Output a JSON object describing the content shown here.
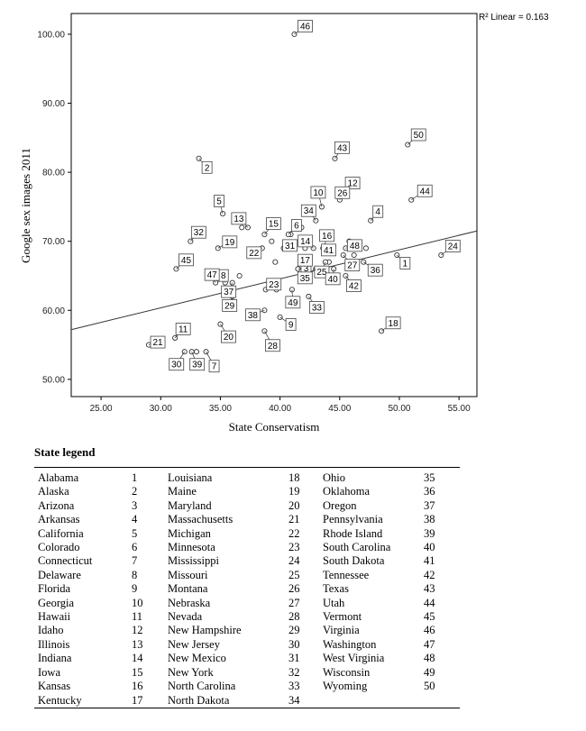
{
  "chart_data": {
    "type": "scatter",
    "xlabel": "State Conservatism",
    "ylabel": "Google sex images 2011",
    "xlim": [
      22.5,
      56.5
    ],
    "ylim": [
      47.5,
      103.0
    ],
    "x_ticks": [
      "25.00",
      "30.00",
      "35.00",
      "40.00",
      "45.00",
      "50.00",
      "55.00"
    ],
    "x_tick_values": [
      25,
      30,
      35,
      40,
      45,
      50,
      55
    ],
    "y_ticks": [
      "50.00",
      "60.00",
      "70.00",
      "80.00",
      "90.00",
      "100.00"
    ],
    "y_tick_values": [
      50,
      60,
      70,
      80,
      90,
      100
    ],
    "fit_line": {
      "label": "R² Linear = 0.163",
      "x": [
        22.5,
        56.5
      ],
      "y": [
        57.2,
        71.5
      ]
    },
    "points": [
      {
        "id": "1",
        "x": 49.8,
        "y": 68
      },
      {
        "id": "2",
        "x": 33.2,
        "y": 82
      },
      {
        "id": "3",
        "x": 41.5,
        "y": 66
      },
      {
        "id": "4",
        "x": 47.6,
        "y": 73
      },
      {
        "id": "5",
        "x": 35.2,
        "y": 74
      },
      {
        "id": "6",
        "x": 40.7,
        "y": 71
      },
      {
        "id": "7",
        "x": 33.8,
        "y": 54
      },
      {
        "id": "8",
        "x": 35.4,
        "y": 64
      },
      {
        "id": "9",
        "x": 40.0,
        "y": 59
      },
      {
        "id": "10",
        "x": 43.5,
        "y": 75
      },
      {
        "id": "11",
        "x": 31.2,
        "y": 56
      },
      {
        "id": "12",
        "x": 45.4,
        "y": 77
      },
      {
        "id": "13",
        "x": 37.3,
        "y": 72
      },
      {
        "id": "14",
        "x": 42.8,
        "y": 69
      },
      {
        "id": "15",
        "x": 38.7,
        "y": 71
      },
      {
        "id": "16",
        "x": 43.7,
        "y": 69
      },
      {
        "id": "17",
        "x": 42.4,
        "y": 67
      },
      {
        "id": "18",
        "x": 48.5,
        "y": 57
      },
      {
        "id": "19",
        "x": 34.8,
        "y": 69
      },
      {
        "id": "20",
        "x": 35.0,
        "y": 58
      },
      {
        "id": "21",
        "x": 29.0,
        "y": 55
      },
      {
        "id": "22",
        "x": 38.5,
        "y": 69
      },
      {
        "id": "23",
        "x": 38.8,
        "y": 63
      },
      {
        "id": "24",
        "x": 53.5,
        "y": 68
      },
      {
        "id": "25",
        "x": 43.8,
        "y": 67
      },
      {
        "id": "26",
        "x": 45.0,
        "y": 76
      },
      {
        "id": "27",
        "x": 45.3,
        "y": 68
      },
      {
        "id": "28",
        "x": 38.7,
        "y": 57
      },
      {
        "id": "29",
        "x": 36.0,
        "y": 62
      },
      {
        "id": "30",
        "x": 32.0,
        "y": 54
      },
      {
        "id": "31",
        "x": 40.3,
        "y": 69
      },
      {
        "id": "32",
        "x": 32.5,
        "y": 70
      },
      {
        "id": "33",
        "x": 42.4,
        "y": 62
      },
      {
        "id": "34",
        "x": 43.0,
        "y": 73
      },
      {
        "id": "35",
        "x": 43.0,
        "y": 66
      },
      {
        "id": "36",
        "x": 47.0,
        "y": 67
      },
      {
        "id": "37",
        "x": 36.0,
        "y": 64
      },
      {
        "id": "38",
        "x": 38.7,
        "y": 60
      },
      {
        "id": "39",
        "x": 32.6,
        "y": 54
      },
      {
        "id": "40",
        "x": 44.5,
        "y": 66
      },
      {
        "id": "41",
        "x": 44.3,
        "y": 69
      },
      {
        "id": "42",
        "x": 45.5,
        "y": 65
      },
      {
        "id": "43",
        "x": 44.6,
        "y": 82
      },
      {
        "id": "44",
        "x": 51.0,
        "y": 76
      },
      {
        "id": "45",
        "x": 31.3,
        "y": 66
      },
      {
        "id": "46",
        "x": 41.2,
        "y": 100
      },
      {
        "id": "47",
        "x": 34.6,
        "y": 64
      },
      {
        "id": "48",
        "x": 45.5,
        "y": 69
      },
      {
        "id": "49",
        "x": 41.0,
        "y": 63
      },
      {
        "id": "50",
        "x": 50.7,
        "y": 84
      }
    ],
    "extra_markers": [
      {
        "x": 36.6,
        "y": 65
      },
      {
        "x": 36.8,
        "y": 72
      },
      {
        "x": 33.0,
        "y": 54
      },
      {
        "x": 39.7,
        "y": 63
      },
      {
        "x": 39.6,
        "y": 67
      },
      {
        "x": 41.8,
        "y": 72
      },
      {
        "x": 43.6,
        "y": 69
      },
      {
        "x": 45.8,
        "y": 70
      },
      {
        "x": 46.2,
        "y": 68
      },
      {
        "x": 42.1,
        "y": 69
      },
      {
        "x": 40.9,
        "y": 71
      },
      {
        "x": 39.3,
        "y": 70
      },
      {
        "x": 44.1,
        "y": 67
      },
      {
        "x": 47.2,
        "y": 69
      }
    ]
  },
  "legend": {
    "title": "State legend",
    "rows": [
      [
        "Alabama",
        "1",
        "Louisiana",
        "18",
        "Ohio",
        "35"
      ],
      [
        "Alaska",
        "2",
        "Maine",
        "19",
        "Oklahoma",
        "36"
      ],
      [
        "Arizona",
        "3",
        "Maryland",
        "20",
        "Oregon",
        "37"
      ],
      [
        "Arkansas",
        "4",
        "Massachusetts",
        "21",
        "Pennsylvania",
        "38"
      ],
      [
        "California",
        "5",
        "Michigan",
        "22",
        "Rhode Island",
        "39"
      ],
      [
        "Colorado",
        "6",
        "Minnesota",
        "23",
        "South Carolina",
        "40"
      ],
      [
        "Connecticut",
        "7",
        "Mississippi",
        "24",
        "South Dakota",
        "41"
      ],
      [
        "Delaware",
        "8",
        "Missouri",
        "25",
        "Tennessee",
        "42"
      ],
      [
        "Florida",
        "9",
        "Montana",
        "26",
        "Texas",
        "43"
      ],
      [
        "Georgia",
        "10",
        "Nebraska",
        "27",
        "Utah",
        "44"
      ],
      [
        "Hawaii",
        "11",
        "Nevada",
        "28",
        "Vermont",
        "45"
      ],
      [
        "Idaho",
        "12",
        "New Hampshire",
        "29",
        "Virginia",
        "46"
      ],
      [
        "Illinois",
        "13",
        "New Jersey",
        "30",
        "Washington",
        "47"
      ],
      [
        "Indiana",
        "14",
        "New Mexico",
        "31",
        "West Virginia",
        "48"
      ],
      [
        "Iowa",
        "15",
        "New York",
        "32",
        "Wisconsin",
        "49"
      ],
      [
        "Kansas",
        "16",
        "North Carolina",
        "33",
        "Wyoming",
        "50"
      ],
      [
        "Kentucky",
        "17",
        "North Dakota",
        "34",
        "",
        ""
      ]
    ]
  }
}
